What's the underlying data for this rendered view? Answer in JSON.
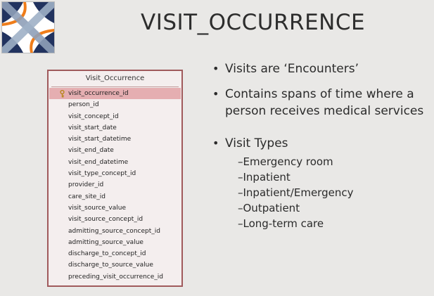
{
  "title": "VISIT_OCCURRENCE",
  "logo": {
    "name": "ohdsi-logo-icon"
  },
  "table": {
    "name": "Visit_Occurrence",
    "primary_key": "visit_occurrence_id",
    "fields": [
      "person_id",
      "visit_concept_id",
      "visit_start_date",
      "visit_start_datetime",
      "visit_end_date",
      "visit_end_datetime",
      "visit_type_concept_id",
      "provider_id",
      "care_site_id",
      "visit_source_value",
      "visit_source_concept_id",
      "admitting_source_concept_id",
      "admitting_source_value",
      "discharge_to_concept_id",
      "discharge_to_source_value",
      "preceding_visit_occurrence_id"
    ]
  },
  "bullets": {
    "b1": "Visits are ‘Encounters’",
    "b2": "Contains spans of time where a person receives medical services",
    "b3": "Visit Types",
    "visit_types": [
      "–Emergency room",
      "–Inpatient",
      "–Inpatient/Emergency",
      "–Outpatient",
      "–Long-term care"
    ]
  },
  "colors": {
    "background": "#e9e8e6",
    "table_border": "#a05a5c",
    "primary_key_highlight": "#e5aeb1",
    "logo_navy": "#22335f",
    "logo_orange": "#ef7d1a"
  }
}
